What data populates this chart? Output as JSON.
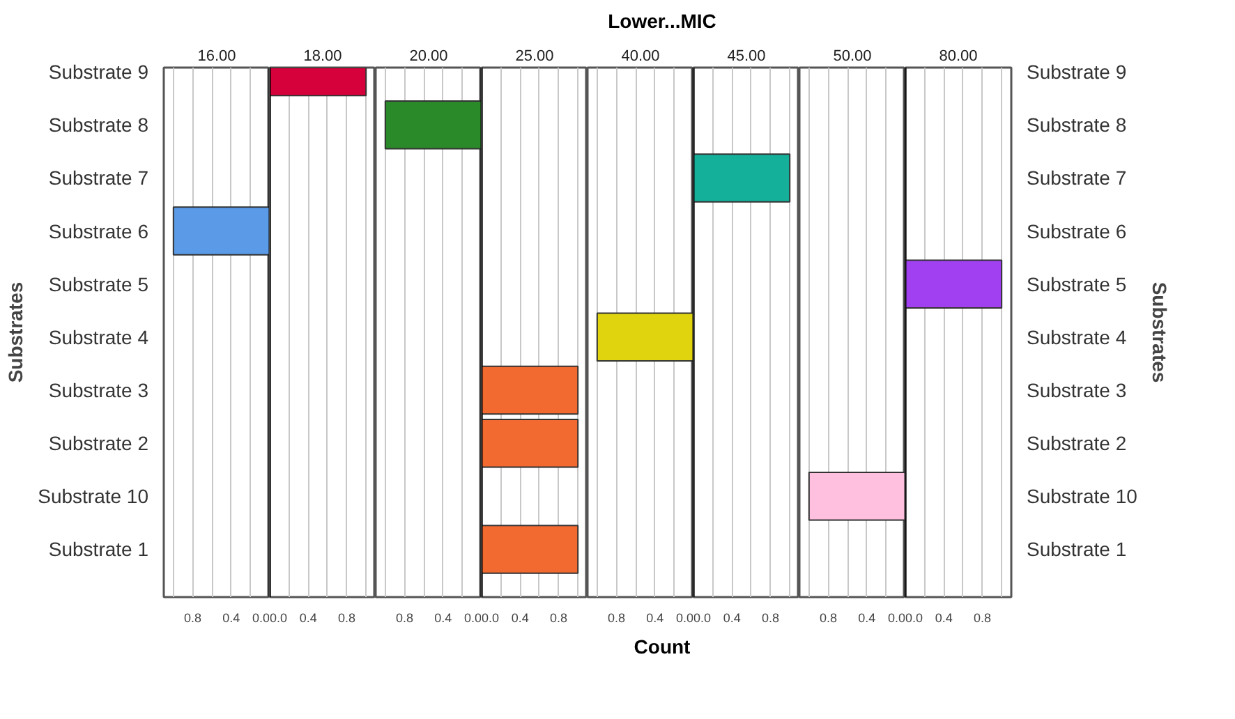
{
  "chart_data": [
    {
      "type": "bar",
      "orientation": "horizontal",
      "title": "16.00",
      "ylabel": "Substrates",
      "annotations": [
        "Lower...MIC",
        "Count"
      ],
      "categories": [
        "Substrate 9",
        "Substrate 8",
        "Substrate 7",
        "Substrate 6",
        "Substrate 5",
        "Substrate 4",
        "Substrate 3",
        "Substrate 2",
        "Substrate 10",
        "Substrate 1"
      ],
      "values": [
        null,
        null,
        null,
        1,
        null,
        null,
        null,
        null,
        null,
        null
      ],
      "color": "#5a9ae6",
      "xlim": [
        1.1,
        0
      ],
      "xticks": [
        {
          "value": 0,
          "label": "0.0"
        },
        {
          "value": 0.2,
          "label": null
        },
        {
          "value": 0.4,
          "label": "0.4"
        },
        {
          "value": 0.6,
          "label": null
        },
        {
          "value": 0.8,
          "label": "0.8"
        },
        {
          "value": 1.0,
          "label": null
        }
      ],
      "grid": "x"
    },
    {
      "type": "bar",
      "orientation": "horizontal",
      "title": "18.00",
      "tick_labels": "x",
      "categories": [
        null,
        null,
        null,
        null,
        null,
        null,
        null,
        null,
        null,
        null
      ],
      "values": [
        1,
        null,
        null,
        null,
        null,
        null,
        null,
        null,
        null,
        null
      ],
      "color": "#d6003a",
      "xlim": [
        0,
        1.1
      ],
      "xticks": [
        {
          "value": 0,
          "label": "0.0"
        },
        {
          "value": 0.2,
          "label": null
        },
        {
          "value": 0.4,
          "label": "0.4"
        },
        {
          "value": 0.6,
          "label": null
        },
        {
          "value": 0.8,
          "label": "0.8"
        },
        {
          "value": 1.0,
          "label": null
        }
      ],
      "grid": "x"
    },
    {
      "type": "bar",
      "orientation": "horizontal",
      "title": "20.00",
      "tick_labels": "x",
      "categories": [
        null,
        null,
        null,
        null,
        null,
        null,
        null,
        null,
        null,
        null
      ],
      "values": [
        null,
        1,
        null,
        null,
        null,
        null,
        null,
        null,
        null,
        null
      ],
      "color": "#2a8a2a",
      "xlim": [
        1.1,
        0
      ],
      "xticks": [
        {
          "value": 0,
          "label": "0.0"
        },
        {
          "value": 0.2,
          "label": null
        },
        {
          "value": 0.4,
          "label": "0.4"
        },
        {
          "value": 0.6,
          "label": null
        },
        {
          "value": 0.8,
          "label": "0.8"
        },
        {
          "value": 1.0,
          "label": null
        }
      ],
      "grid": "x"
    },
    {
      "type": "bar",
      "orientation": "horizontal",
      "title": "25.00",
      "tick_labels": "x",
      "categories": [
        null,
        null,
        null,
        null,
        null,
        null,
        null,
        null,
        null,
        null
      ],
      "values": [
        null,
        null,
        null,
        null,
        null,
        null,
        1,
        1,
        null,
        1
      ],
      "color": "#f26a30",
      "xlim": [
        0,
        1.1
      ],
      "xticks": [
        {
          "value": 0,
          "label": "0.0"
        },
        {
          "value": 0.2,
          "label": null
        },
        {
          "value": 0.4,
          "label": "0.4"
        },
        {
          "value": 0.6,
          "label": null
        },
        {
          "value": 0.8,
          "label": "0.8"
        },
        {
          "value": 1.0,
          "label": null
        }
      ],
      "grid": "x"
    },
    {
      "type": "bar",
      "orientation": "horizontal",
      "title": "40.00",
      "tick_labels": "x",
      "categories": [
        null,
        null,
        null,
        null,
        null,
        null,
        null,
        null,
        null,
        null
      ],
      "values": [
        null,
        null,
        null,
        null,
        null,
        1,
        null,
        null,
        null,
        null
      ],
      "color": "#e0d40f",
      "xlim": [
        1.1,
        0
      ],
      "xticks": [
        {
          "value": 0,
          "label": "0.0"
        },
        {
          "value": 0.2,
          "label": null
        },
        {
          "value": 0.4,
          "label": "0.4"
        },
        {
          "value": 0.6,
          "label": null
        },
        {
          "value": 0.8,
          "label": "0.8"
        },
        {
          "value": 1.0,
          "label": null
        }
      ],
      "grid": "x"
    },
    {
      "type": "bar",
      "orientation": "horizontal",
      "title": "45.00",
      "tick_labels": "x",
      "categories": [
        null,
        null,
        null,
        null,
        null,
        null,
        null,
        null,
        null,
        null
      ],
      "values": [
        null,
        null,
        1,
        null,
        null,
        null,
        null,
        null,
        null,
        null
      ],
      "color": "#14b09a",
      "xlim": [
        0,
        1.1
      ],
      "xticks": [
        {
          "value": 0,
          "label": "0.0"
        },
        {
          "value": 0.2,
          "label": null
        },
        {
          "value": 0.4,
          "label": "0.4"
        },
        {
          "value": 0.6,
          "label": null
        },
        {
          "value": 0.8,
          "label": "0.8"
        },
        {
          "value": 1.0,
          "label": null
        }
      ],
      "grid": "x"
    },
    {
      "type": "bar",
      "orientation": "horizontal",
      "title": "50.00",
      "tick_labels": "x",
      "categories": [
        null,
        null,
        null,
        null,
        null,
        null,
        null,
        null,
        null,
        null
      ],
      "values": [
        null,
        null,
        null,
        null,
        null,
        null,
        null,
        null,
        1,
        null
      ],
      "color": "#ffc0e0",
      "xlim": [
        1.1,
        0
      ],
      "xticks": [
        {
          "value": 0,
          "label": "0.0"
        },
        {
          "value": 0.2,
          "label": null
        },
        {
          "value": 0.4,
          "label": "0.4"
        },
        {
          "value": 0.6,
          "label": null
        },
        {
          "value": 0.8,
          "label": "0.8"
        },
        {
          "value": 1.0,
          "label": null
        }
      ],
      "grid": "x"
    },
    {
      "type": "bar",
      "orientation": "horizontal",
      "title": "80.00",
      "y2label": "Substrates",
      "categories": [
        "Substrate 9",
        "Substrate 8",
        "Substrate 7",
        "Substrate 6",
        "Substrate 5",
        "Substrate 4",
        "Substrate 3",
        "Substrate 2",
        "Substrate 10",
        "Substrate 1"
      ],
      "values": [
        null,
        null,
        null,
        null,
        1,
        null,
        null,
        null,
        null,
        null
      ],
      "color": "#a040f0",
      "xlim": [
        0,
        1.1
      ],
      "xticks": [
        {
          "value": 0,
          "label": "0.0"
        },
        {
          "value": 0.2,
          "label": null
        },
        {
          "value": 0.4,
          "label": "0.4"
        },
        {
          "value": 0.6,
          "label": null
        },
        {
          "value": 0.8,
          "label": "0.8"
        },
        {
          "value": 1.0,
          "label": null
        }
      ],
      "grid": "x"
    }
  ]
}
